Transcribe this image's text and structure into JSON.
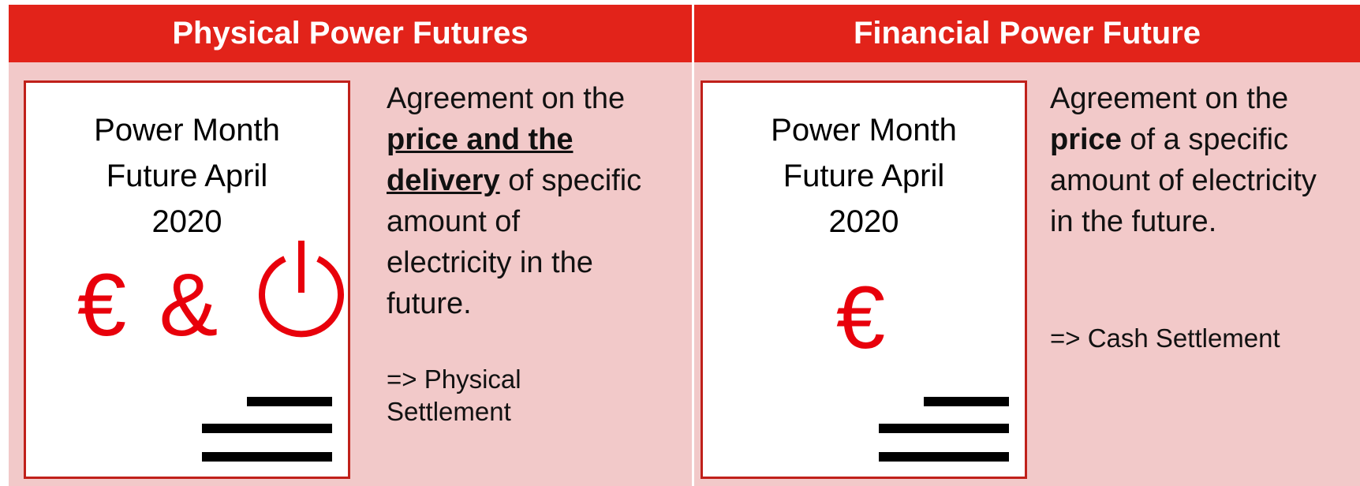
{
  "panels": [
    {
      "title": "Physical Power Futures",
      "card": {
        "lines": [
          "Power Month",
          "Future April",
          "2020"
        ],
        "symbols": [
          "€",
          "&"
        ]
      },
      "description": [
        [
          {
            "text": "Agreement on the"
          }
        ],
        [
          {
            "text": "price and the",
            "bold": true,
            "underline": true
          }
        ],
        [
          {
            "text": "delivery",
            "bold": true,
            "underline": true
          },
          {
            "text": " of specific"
          }
        ],
        [
          {
            "text": "amount of"
          }
        ],
        [
          {
            "text": "electricity in the"
          }
        ],
        [
          {
            "text": "future."
          }
        ]
      ],
      "settlement": [
        "=> Physical",
        "Settlement"
      ]
    },
    {
      "title": "Financial Power Future",
      "card": {
        "lines": [
          "Power Month",
          "Future April",
          "2020"
        ],
        "symbols": [
          "€"
        ]
      },
      "description": [
        [
          {
            "text": "Agreement on the"
          }
        ],
        [
          {
            "text": "price",
            "bold": true
          },
          {
            "text": " of a specific"
          }
        ],
        [
          {
            "text": "amount of electricity"
          }
        ],
        [
          {
            "text": "in the future."
          }
        ]
      ],
      "settlement": [
        "=> Cash Settlement"
      ]
    }
  ]
}
